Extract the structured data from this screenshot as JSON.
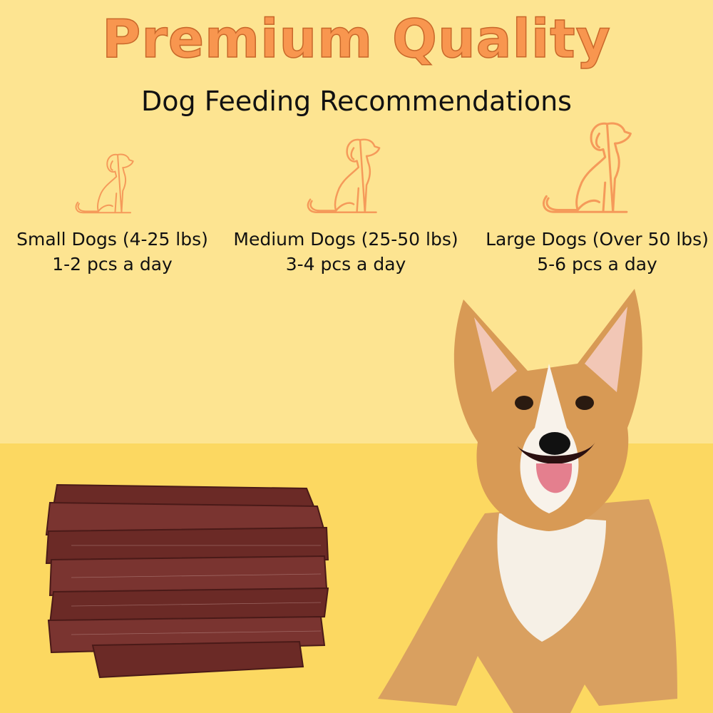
{
  "header": {
    "title": "Premium Quality",
    "subtitle": "Dog Feeding Recommendations"
  },
  "recommendations": [
    {
      "label": "Small Dogs (4-25 lbs)",
      "amount": "1-2 pcs a day",
      "icon": "sitting-dog-icon"
    },
    {
      "label": "Medium Dogs (25-50 lbs)",
      "amount": "3-4 pcs a day",
      "icon": "sitting-dog-icon"
    },
    {
      "label": "Large Dogs (Over 50 lbs)",
      "amount": "5-6 pcs a day",
      "icon": "sitting-dog-icon"
    }
  ],
  "colors": {
    "title": "#f8964f",
    "icon_stroke": "#f59a5a",
    "bg_top": "#fde491",
    "bg_bottom": "#fcd861"
  }
}
